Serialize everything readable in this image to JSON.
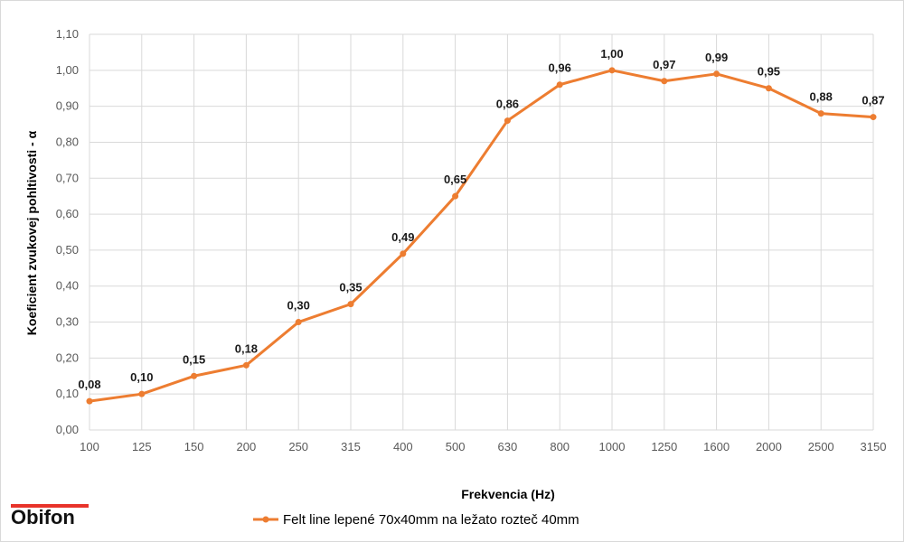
{
  "chart_data": {
    "type": "line",
    "categories": [
      "100",
      "125",
      "150",
      "200",
      "250",
      "315",
      "400",
      "500",
      "630",
      "800",
      "1000",
      "1250",
      "1600",
      "2000",
      "2500",
      "3150"
    ],
    "series": [
      {
        "name": "Felt line lepené 70x40mm na ležato rozteč 40mm",
        "values": [
          0.08,
          0.1,
          0.15,
          0.18,
          0.3,
          0.35,
          0.49,
          0.65,
          0.86,
          0.96,
          1.0,
          0.97,
          0.99,
          0.95,
          0.88,
          0.87
        ],
        "labels": [
          "0,08",
          "0,10",
          "0,15",
          "0,18",
          "0,30",
          "0,35",
          "0,49",
          "0,65",
          "0,86",
          "0,96",
          "1,00",
          "0,97",
          "0,99",
          "0,95",
          "0,88",
          "0,87"
        ],
        "color": "#ed7d31"
      }
    ],
    "title": "",
    "xlabel": "Frekvencia (Hz)",
    "ylabel": "Koeficient zvukovej pohltivosti - α",
    "ylim": [
      0,
      1.1
    ],
    "yticks": [
      0,
      0.1,
      0.2,
      0.3,
      0.4,
      0.5,
      0.6,
      0.7,
      0.8,
      0.9,
      1.0,
      1.1
    ],
    "ytick_labels": [
      "0,00",
      "0,10",
      "0,20",
      "0,30",
      "0,40",
      "0,50",
      "0,60",
      "0,70",
      "0,80",
      "0,90",
      "1,00",
      "1,10"
    ],
    "grid": true,
    "legend_position": "bottom"
  },
  "brand": {
    "logo_text": "Obifon",
    "accent": "#e8332a"
  }
}
